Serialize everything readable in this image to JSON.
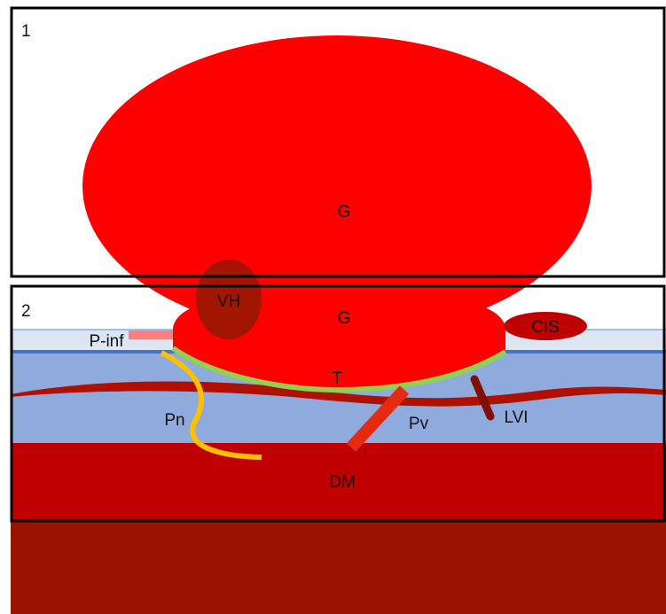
{
  "panels": [
    {
      "label": "1"
    },
    {
      "label": "2"
    }
  ],
  "labels": [
    {
      "text": "G"
    },
    {
      "text": "G"
    },
    {
      "text": "VH"
    },
    {
      "text": "CIS"
    },
    {
      "text": "P-inf"
    },
    {
      "text": "T"
    },
    {
      "text": "Pn"
    },
    {
      "text": "Pv"
    },
    {
      "text": "LVI"
    },
    {
      "text": "DM"
    }
  ]
}
